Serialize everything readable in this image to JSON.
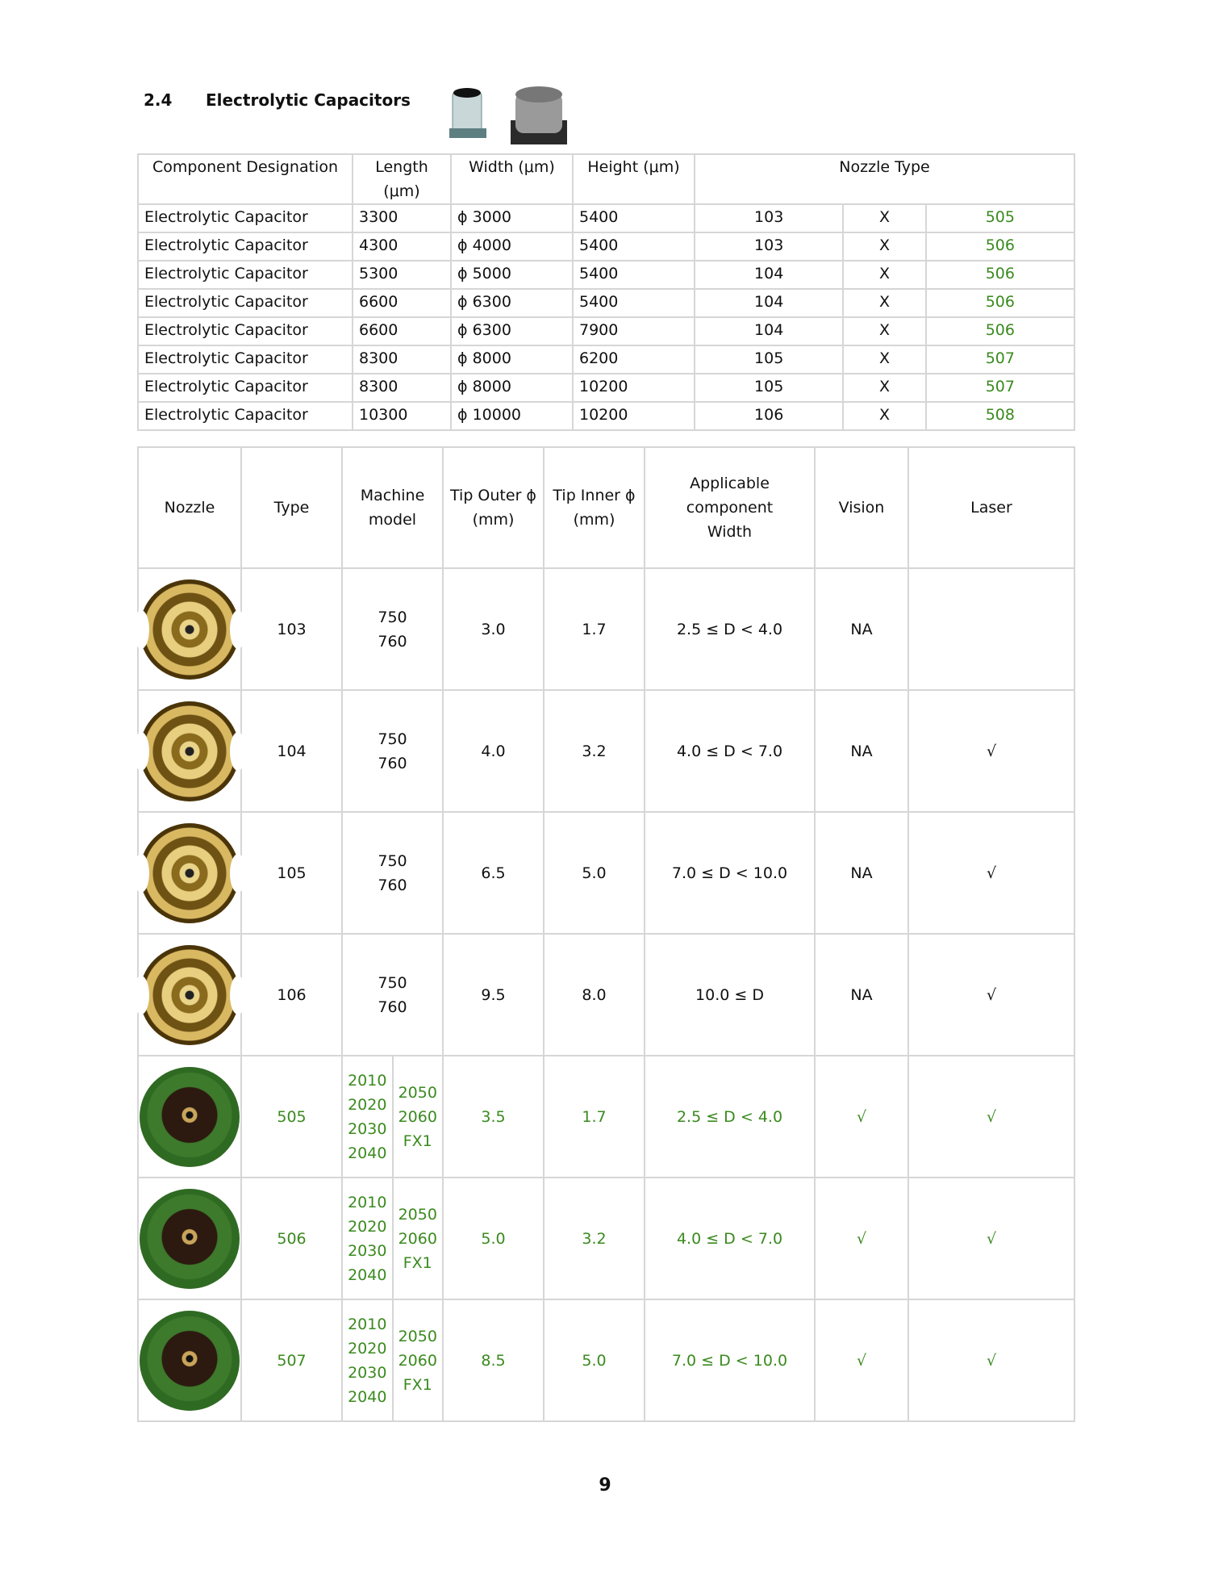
{
  "section": {
    "number": "2.4",
    "title": "Electrolytic Capacitors"
  },
  "colors": {
    "green": "#3a8a1e"
  },
  "table1": {
    "headers": [
      "Component Designation",
      "Length (μm)",
      "Width (μm)",
      "Height (μm)",
      "Nozzle Type"
    ],
    "rows": [
      {
        "name": "Electrolytic Capacitor",
        "length": "3300",
        "width": "ϕ 3000",
        "height": "5400",
        "n1": "103",
        "n2": "X",
        "n3": "505"
      },
      {
        "name": "Electrolytic Capacitor",
        "length": "4300",
        "width": "ϕ 4000",
        "height": "5400",
        "n1": "103",
        "n2": "X",
        "n3": "506"
      },
      {
        "name": "Electrolytic Capacitor",
        "length": "5300",
        "width": "ϕ 5000",
        "height": "5400",
        "n1": "104",
        "n2": "X",
        "n3": "506"
      },
      {
        "name": "Electrolytic Capacitor",
        "length": "6600",
        "width": "ϕ 6300",
        "height": "5400",
        "n1": "104",
        "n2": "X",
        "n3": "506"
      },
      {
        "name": "Electrolytic Capacitor",
        "length": "6600",
        "width": "ϕ 6300",
        "height": "7900",
        "n1": "104",
        "n2": "X",
        "n3": "506"
      },
      {
        "name": "Electrolytic Capacitor",
        "length": "8300",
        "width": "ϕ 8000",
        "height": "6200",
        "n1": "105",
        "n2": "X",
        "n3": "507"
      },
      {
        "name": "Electrolytic Capacitor",
        "length": "8300",
        "width": "ϕ 8000",
        "height": "10200",
        "n1": "105",
        "n2": "X",
        "n3": "507"
      },
      {
        "name": "Electrolytic Capacitor",
        "length": "10300",
        "width": "ϕ 10000",
        "height": "10200",
        "n1": "106",
        "n2": "X",
        "n3": "508"
      }
    ]
  },
  "table2": {
    "headers": {
      "nozzle": "Nozzle",
      "type": "Type",
      "machine_l1": "Machine",
      "machine_l2": "model",
      "outer_l1": "Tip Outer ϕ",
      "outer_l2": "(mm)",
      "inner_l1": "Tip Inner ϕ",
      "inner_l2": "(mm)",
      "app_l1": "Applicable component",
      "app_l2": "Width",
      "vision": "Vision",
      "laser": "Laser"
    },
    "rows": [
      {
        "type": "103",
        "models": [
          "750",
          "760"
        ],
        "outer": "3.0",
        "inner": "1.7",
        "app": "2.5 ≤ D < 4.0",
        "vision": "NA",
        "laser": ""
      },
      {
        "type": "104",
        "models": [
          "750",
          "760"
        ],
        "outer": "4.0",
        "inner": "3.2",
        "app": "4.0 ≤ D < 7.0",
        "vision": "NA",
        "laser": "√"
      },
      {
        "type": "105",
        "models": [
          "750",
          "760"
        ],
        "outer": "6.5",
        "inner": "5.0",
        "app": "7.0 ≤ D < 10.0",
        "vision": "NA",
        "laser": "√"
      },
      {
        "type": "106",
        "models": [
          "750",
          "760"
        ],
        "outer": "9.5",
        "inner": "8.0",
        "app": "10.0 ≤ D",
        "vision": "NA",
        "laser": "√"
      },
      {
        "type": "505",
        "models_a": [
          "2010",
          "2020",
          "2030",
          "2040"
        ],
        "models_b": [
          "2050",
          "2060",
          "FX1"
        ],
        "outer": "3.5",
        "inner": "1.7",
        "app": "2.5 ≤ D < 4.0",
        "vision": "√",
        "laser": "√"
      },
      {
        "type": "506",
        "models_a": [
          "2010",
          "2020",
          "2030",
          "2040"
        ],
        "models_b": [
          "2050",
          "2060",
          "FX1"
        ],
        "outer": "5.0",
        "inner": "3.2",
        "app": "4.0 ≤ D < 7.0",
        "vision": "√",
        "laser": "√"
      },
      {
        "type": "507",
        "models_a": [
          "2010",
          "2020",
          "2030",
          "2040"
        ],
        "models_b": [
          "2050",
          "2060",
          "FX1"
        ],
        "outer": "8.5",
        "inner": "5.0",
        "app": "7.0 ≤ D < 10.0",
        "vision": "√",
        "laser": "√"
      }
    ]
  },
  "page_number": "9"
}
